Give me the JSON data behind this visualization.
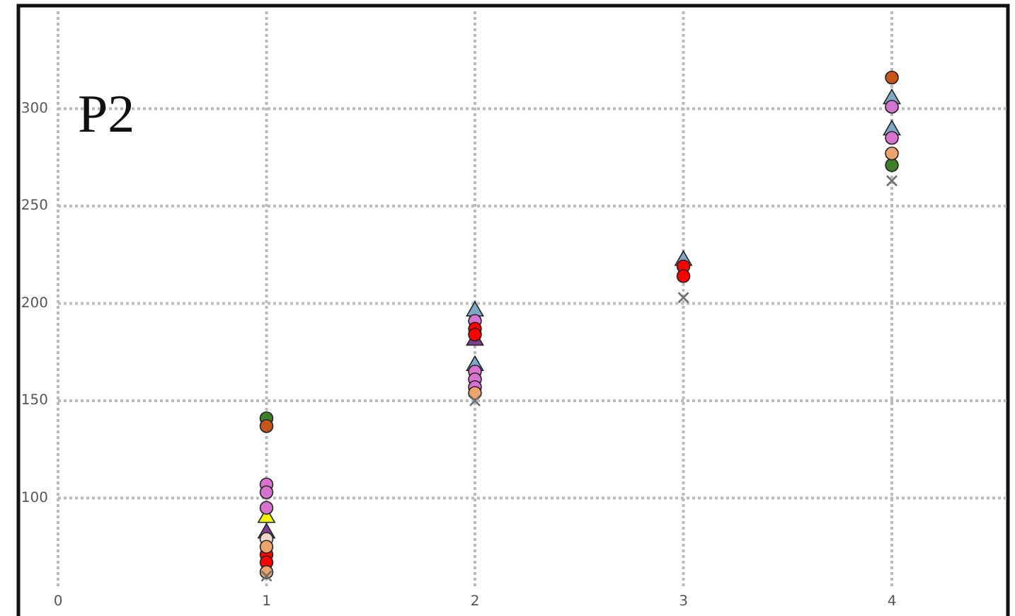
{
  "chart_data": {
    "type": "scatter",
    "title": "P2",
    "xlim": [
      0,
      4.55
    ],
    "xticks": [
      0,
      1,
      2,
      3,
      4
    ],
    "ylim": [
      54,
      350
    ],
    "yticks": [
      100,
      150,
      200,
      250,
      300
    ],
    "grid": true,
    "series": [
      {
        "color": "#7fa8c4",
        "marker": "triangle",
        "x": [
          2,
          2,
          3,
          4,
          4
        ],
        "values": [
          196,
          168,
          222,
          305,
          289
        ]
      },
      {
        "color": "#7d3f8e",
        "marker": "triangle",
        "x": [
          1,
          2
        ],
        "values": [
          82,
          181
        ]
      },
      {
        "color": "#f2f200",
        "marker": "triangle",
        "x": [
          1
        ],
        "values": [
          90
        ]
      },
      {
        "color": "#3f7f2a",
        "marker": "circle",
        "x": [
          1,
          4
        ],
        "values": [
          141,
          271
        ]
      },
      {
        "color": "#c4561c",
        "marker": "circle",
        "x": [
          1,
          4
        ],
        "values": [
          137,
          316
        ]
      },
      {
        "color": "#d673d0",
        "marker": "circle",
        "x": [
          1,
          1,
          1,
          2,
          2,
          2,
          2,
          4,
          4
        ],
        "values": [
          107,
          103,
          95,
          191,
          165,
          161,
          157,
          301,
          285
        ]
      },
      {
        "color": "#ff0000",
        "marker": "circle",
        "x": [
          1,
          1,
          2,
          2,
          3,
          3
        ],
        "values": [
          71,
          67,
          187,
          184,
          219,
          214
        ]
      },
      {
        "color": "#f2d6c9",
        "marker": "circle",
        "x": [
          1
        ],
        "values": [
          79
        ]
      },
      {
        "color": "#eda36c",
        "marker": "circle",
        "x": [
          1,
          1,
          2,
          4
        ],
        "values": [
          75,
          62,
          154,
          277
        ]
      },
      {
        "color": "#707070",
        "marker": "cross",
        "x": [
          1,
          2,
          3,
          4
        ],
        "values": [
          60,
          150,
          203,
          263
        ]
      }
    ]
  }
}
